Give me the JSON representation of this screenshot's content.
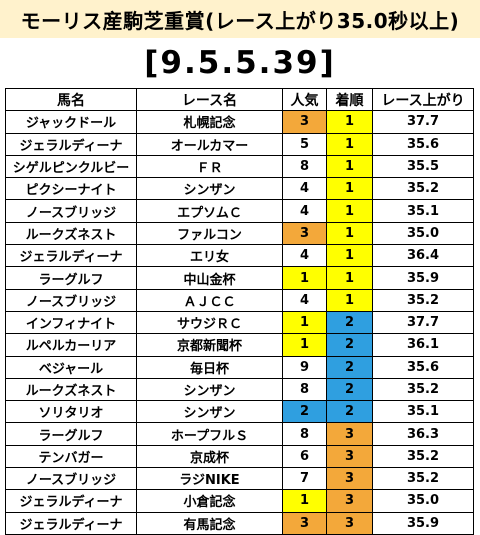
{
  "title": "モーリス産駒芝重賞(レース上がり35.0秒以上)",
  "subtitle": "[9.5.5.39]",
  "headers": [
    "馬名",
    "レース名",
    "人気",
    "着順",
    "レース上がり"
  ],
  "colors": {
    "title_bg": "#fff2cc",
    "yellow": "#ffff00",
    "orange": "#f3a83a",
    "blue": "#2f9fe0"
  },
  "rows": [
    {
      "horse": "ジャックドール",
      "race": "札幌記念",
      "pop": "3",
      "pop_color": "orange",
      "pos": "1",
      "pos_color": "yellow",
      "time": "37.7"
    },
    {
      "horse": "ジェラルディーナ",
      "race": "オールカマー",
      "pop": "5",
      "pop_color": "",
      "pos": "1",
      "pos_color": "yellow",
      "time": "35.6"
    },
    {
      "horse": "シゲルピンクルビー",
      "race": "ＦＲ",
      "pop": "8",
      "pop_color": "",
      "pos": "1",
      "pos_color": "yellow",
      "time": "35.5"
    },
    {
      "horse": "ピクシーナイト",
      "race": "シンザン",
      "pop": "4",
      "pop_color": "",
      "pos": "1",
      "pos_color": "yellow",
      "time": "35.2"
    },
    {
      "horse": "ノースブリッジ",
      "race": "エプソムＣ",
      "pop": "4",
      "pop_color": "",
      "pos": "1",
      "pos_color": "yellow",
      "time": "35.1"
    },
    {
      "horse": "ルークズネスト",
      "race": "ファルコン",
      "pop": "3",
      "pop_color": "orange",
      "pos": "1",
      "pos_color": "yellow",
      "time": "35.0"
    },
    {
      "horse": "ジェラルディーナ",
      "race": "エリ女",
      "pop": "4",
      "pop_color": "",
      "pos": "1",
      "pos_color": "yellow",
      "time": "36.4"
    },
    {
      "horse": "ラーグルフ",
      "race": "中山金杯",
      "pop": "1",
      "pop_color": "yellow",
      "pos": "1",
      "pos_color": "yellow",
      "time": "35.9"
    },
    {
      "horse": "ノースブリッジ",
      "race": "ＡＪＣＣ",
      "pop": "4",
      "pop_color": "",
      "pos": "1",
      "pos_color": "yellow",
      "time": "35.2"
    },
    {
      "horse": "インフィナイト",
      "race": "サウジＲＣ",
      "pop": "1",
      "pop_color": "yellow",
      "pos": "2",
      "pos_color": "blue",
      "time": "37.7"
    },
    {
      "horse": "ルペルカーリア",
      "race": "京都新聞杯",
      "pop": "1",
      "pop_color": "yellow",
      "pos": "2",
      "pos_color": "blue",
      "time": "36.1"
    },
    {
      "horse": "ベジャール",
      "race": "毎日杯",
      "pop": "9",
      "pop_color": "",
      "pos": "2",
      "pos_color": "blue",
      "time": "35.6"
    },
    {
      "horse": "ルークズネスト",
      "race": "シンザン",
      "pop": "8",
      "pop_color": "",
      "pos": "2",
      "pos_color": "blue",
      "time": "35.2"
    },
    {
      "horse": "ソリタリオ",
      "race": "シンザン",
      "pop": "2",
      "pop_color": "blue",
      "pos": "2",
      "pos_color": "blue",
      "time": "35.1"
    },
    {
      "horse": "ラーグルフ",
      "race": "ホープフルＳ",
      "pop": "8",
      "pop_color": "",
      "pos": "3",
      "pos_color": "orange",
      "time": "36.3"
    },
    {
      "horse": "テンバガー",
      "race": "京成杯",
      "pop": "6",
      "pop_color": "",
      "pos": "3",
      "pos_color": "orange",
      "time": "35.2"
    },
    {
      "horse": "ノースブリッジ",
      "race": "ラジNIKE",
      "pop": "7",
      "pop_color": "",
      "pos": "3",
      "pos_color": "orange",
      "time": "35.2"
    },
    {
      "horse": "ジェラルディーナ",
      "race": "小倉記念",
      "pop": "1",
      "pop_color": "yellow",
      "pos": "3",
      "pos_color": "orange",
      "time": "35.0"
    },
    {
      "horse": "ジェラルディーナ",
      "race": "有馬記念",
      "pop": "3",
      "pop_color": "orange",
      "pos": "3",
      "pos_color": "orange",
      "time": "35.9"
    }
  ]
}
